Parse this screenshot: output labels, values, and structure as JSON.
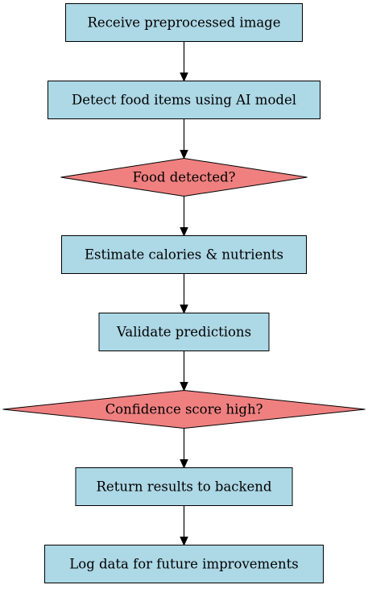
{
  "flowchart": {
    "colors": {
      "process_fill": "#add8e6",
      "decision_fill": "#f08080",
      "stroke": "#000000"
    },
    "nodes": [
      {
        "id": "receive",
        "shape": "process",
        "label": "Receive preprocessed image"
      },
      {
        "id": "detect",
        "shape": "process",
        "label": "Detect food items using AI model"
      },
      {
        "id": "food_detected",
        "shape": "decision",
        "label": "Food detected?"
      },
      {
        "id": "estimate",
        "shape": "process",
        "label": "Estimate calories & nutrients"
      },
      {
        "id": "validate",
        "shape": "process",
        "label": "Validate predictions"
      },
      {
        "id": "confidence",
        "shape": "decision",
        "label": "Confidence score high?"
      },
      {
        "id": "return",
        "shape": "process",
        "label": "Return results to backend"
      },
      {
        "id": "log",
        "shape": "process",
        "label": "Log data for future improvements"
      }
    ],
    "edges": [
      {
        "from": "receive",
        "to": "detect"
      },
      {
        "from": "detect",
        "to": "food_detected"
      },
      {
        "from": "food_detected",
        "to": "estimate"
      },
      {
        "from": "estimate",
        "to": "validate"
      },
      {
        "from": "validate",
        "to": "confidence"
      },
      {
        "from": "confidence",
        "to": "return"
      },
      {
        "from": "return",
        "to": "log"
      }
    ]
  }
}
